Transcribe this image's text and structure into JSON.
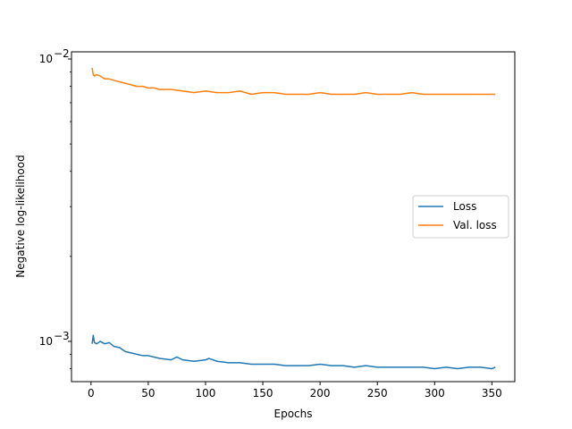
{
  "chart_data": {
    "type": "line",
    "title": "",
    "xlabel": "Epochs",
    "ylabel": "Negative log-likelihood",
    "xlim": [
      -17,
      370
    ],
    "ylim": [
      0.00072,
      0.0106
    ],
    "yscale": "log",
    "grid": false,
    "legend_position": "center-right",
    "x_ticks": [
      0,
      50,
      100,
      150,
      200,
      250,
      300,
      350
    ],
    "x_tick_labels": [
      "0",
      "50",
      "100",
      "150",
      "200",
      "250",
      "300",
      "350"
    ],
    "y_ticks": [
      0.001,
      0.01
    ],
    "y_tick_labels": [
      {
        "base": "10",
        "exp": "−3"
      },
      {
        "base": "10",
        "exp": "−2"
      }
    ],
    "series": [
      {
        "name": "Loss",
        "color": "#1f77b4",
        "x": [
          1,
          2,
          3,
          5,
          8,
          12,
          16,
          20,
          25,
          30,
          35,
          40,
          45,
          50,
          55,
          60,
          70,
          75,
          80,
          90,
          100,
          103,
          110,
          120,
          130,
          140,
          150,
          160,
          170,
          180,
          190,
          200,
          210,
          220,
          230,
          240,
          250,
          260,
          270,
          280,
          290,
          300,
          310,
          320,
          330,
          340,
          350,
          353
        ],
        "y": [
          0.00098,
          0.00105,
          0.00099,
          0.00098,
          0.001,
          0.00098,
          0.00099,
          0.00096,
          0.00095,
          0.00092,
          0.00091,
          0.0009,
          0.00089,
          0.00089,
          0.00088,
          0.00087,
          0.00086,
          0.00088,
          0.00086,
          0.00085,
          0.00086,
          0.00087,
          0.00085,
          0.00084,
          0.00084,
          0.00083,
          0.00083,
          0.00083,
          0.00082,
          0.00082,
          0.00082,
          0.00083,
          0.00082,
          0.00082,
          0.00081,
          0.00082,
          0.00081,
          0.00081,
          0.00081,
          0.00081,
          0.00081,
          0.0008,
          0.00081,
          0.0008,
          0.00081,
          0.00081,
          0.0008,
          0.00081
        ]
      },
      {
        "name": "Val. loss",
        "color": "#ff7f0e",
        "x": [
          1,
          2,
          3,
          5,
          8,
          12,
          16,
          20,
          25,
          30,
          35,
          40,
          45,
          50,
          55,
          60,
          70,
          80,
          90,
          100,
          110,
          120,
          130,
          140,
          150,
          160,
          170,
          180,
          190,
          200,
          210,
          220,
          230,
          240,
          250,
          260,
          270,
          280,
          290,
          300,
          310,
          320,
          330,
          340,
          350,
          353
        ],
        "y": [
          0.0093,
          0.0088,
          0.0087,
          0.0088,
          0.0087,
          0.0085,
          0.0085,
          0.0084,
          0.0083,
          0.0082,
          0.0081,
          0.008,
          0.008,
          0.0079,
          0.0079,
          0.0078,
          0.0078,
          0.0077,
          0.0076,
          0.0077,
          0.0076,
          0.0076,
          0.0077,
          0.0075,
          0.0076,
          0.0076,
          0.0075,
          0.0075,
          0.0075,
          0.0076,
          0.0075,
          0.0075,
          0.0075,
          0.0076,
          0.0075,
          0.0075,
          0.0075,
          0.0076,
          0.0075,
          0.0075,
          0.0075,
          0.0075,
          0.0075,
          0.0075,
          0.0075,
          0.0075
        ]
      }
    ]
  }
}
